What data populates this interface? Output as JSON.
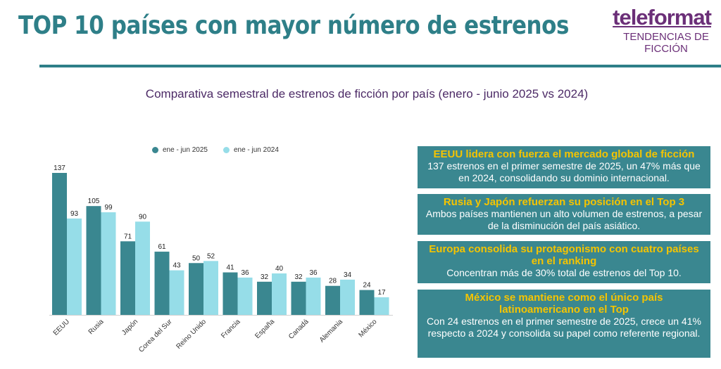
{
  "header": {
    "title": "TOP 10 países con mayor número de estrenos",
    "logo_word": "teleformat",
    "logo_sub": "TENDENCIAS DE FICCIÓN"
  },
  "colors": {
    "accent": "#2e7f88",
    "brand": "#6b2f78",
    "highlight": "#f5c400"
  },
  "chart_data": {
    "type": "bar",
    "title": "Comparativa semestral de estrenos de ficción por país (enero - junio 2025 vs 2024)",
    "categories": [
      "EEUU",
      "Rusia",
      "Japón",
      "Corea del Sur",
      "Reino Unido",
      "Francia",
      "España",
      "Canadá",
      "Alemania",
      "México"
    ],
    "series": [
      {
        "name": "ene - jun 2025",
        "color": "#3a8790",
        "values": [
          137,
          105,
          71,
          61,
          50,
          41,
          32,
          32,
          28,
          24
        ]
      },
      {
        "name": "ene - jun 2024",
        "color": "#96dde8",
        "values": [
          93,
          99,
          90,
          43,
          52,
          36,
          40,
          36,
          34,
          17
        ]
      }
    ],
    "legend_position": "top",
    "grid": false,
    "ylim": [
      0,
      137
    ]
  },
  "insights": [
    {
      "headline": "EEUU lidera con fuerza el mercado global de ficción",
      "body": "137 estrenos en el primer semestre de 2025, un 47% más que en 2024, consolidando su dominio internacional."
    },
    {
      "headline": "Rusia y Japón refuerzan su posición en el Top 3",
      "body": "Ambos países mantienen un alto volumen de estrenos, a pesar de la disminución del país asiático."
    },
    {
      "headline": "Europa consolida su protagonismo con cuatro países en el ranking",
      "body": "Concentran más de 30% total de estrenos del Top 10."
    },
    {
      "headline": "México se mantiene como el único país latinoamericano en el Top",
      "body": "Con 24 estrenos en el primer semestre de 2025, crece un 41% respecto a 2024 y consolida su papel como referente regional."
    }
  ]
}
